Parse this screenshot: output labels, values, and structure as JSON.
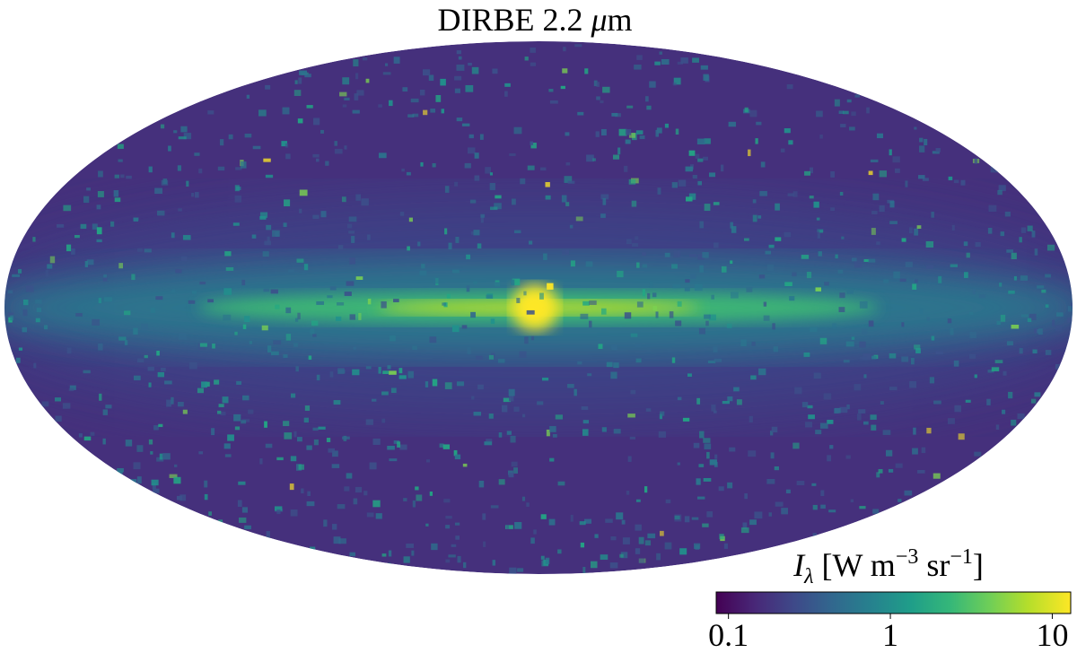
{
  "title": [
    "DIRBE 2.2 ",
    "μ",
    "m"
  ],
  "colorbar": {
    "label": [
      "I",
      "λ",
      " [W m",
      "−3",
      " sr",
      "−1",
      "]"
    ],
    "scale": "log",
    "lim": [
      0.084,
      13
    ],
    "ticks": [
      0.1,
      1,
      10
    ],
    "colormap": "viridis"
  }
}
